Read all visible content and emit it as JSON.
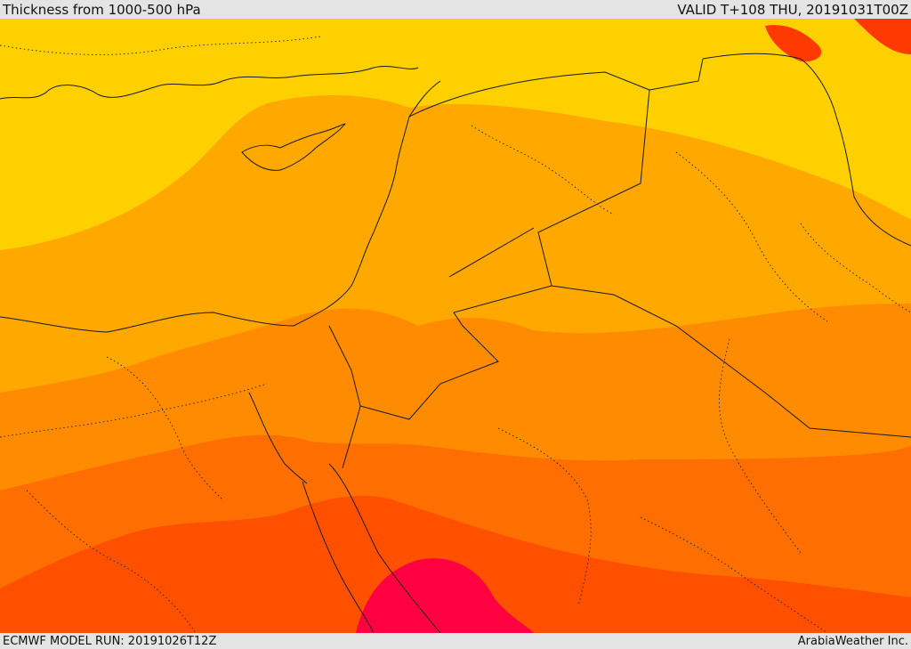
{
  "header": {
    "title": "Thickness from 1000-500 hPa",
    "valid": "VALID T+108 THU, 20191031T00Z"
  },
  "footer": {
    "model_run": "ECMWF MODEL RUN: 20191026T12Z",
    "credit": "ArabiaWeather Inc."
  },
  "map": {
    "band_colors": [
      "#ffd000",
      "#ffa800",
      "#ff8c00",
      "#ff6e00",
      "#ff5000",
      "#ff3a00",
      "#ff0040",
      "#ff00a0"
    ]
  }
}
